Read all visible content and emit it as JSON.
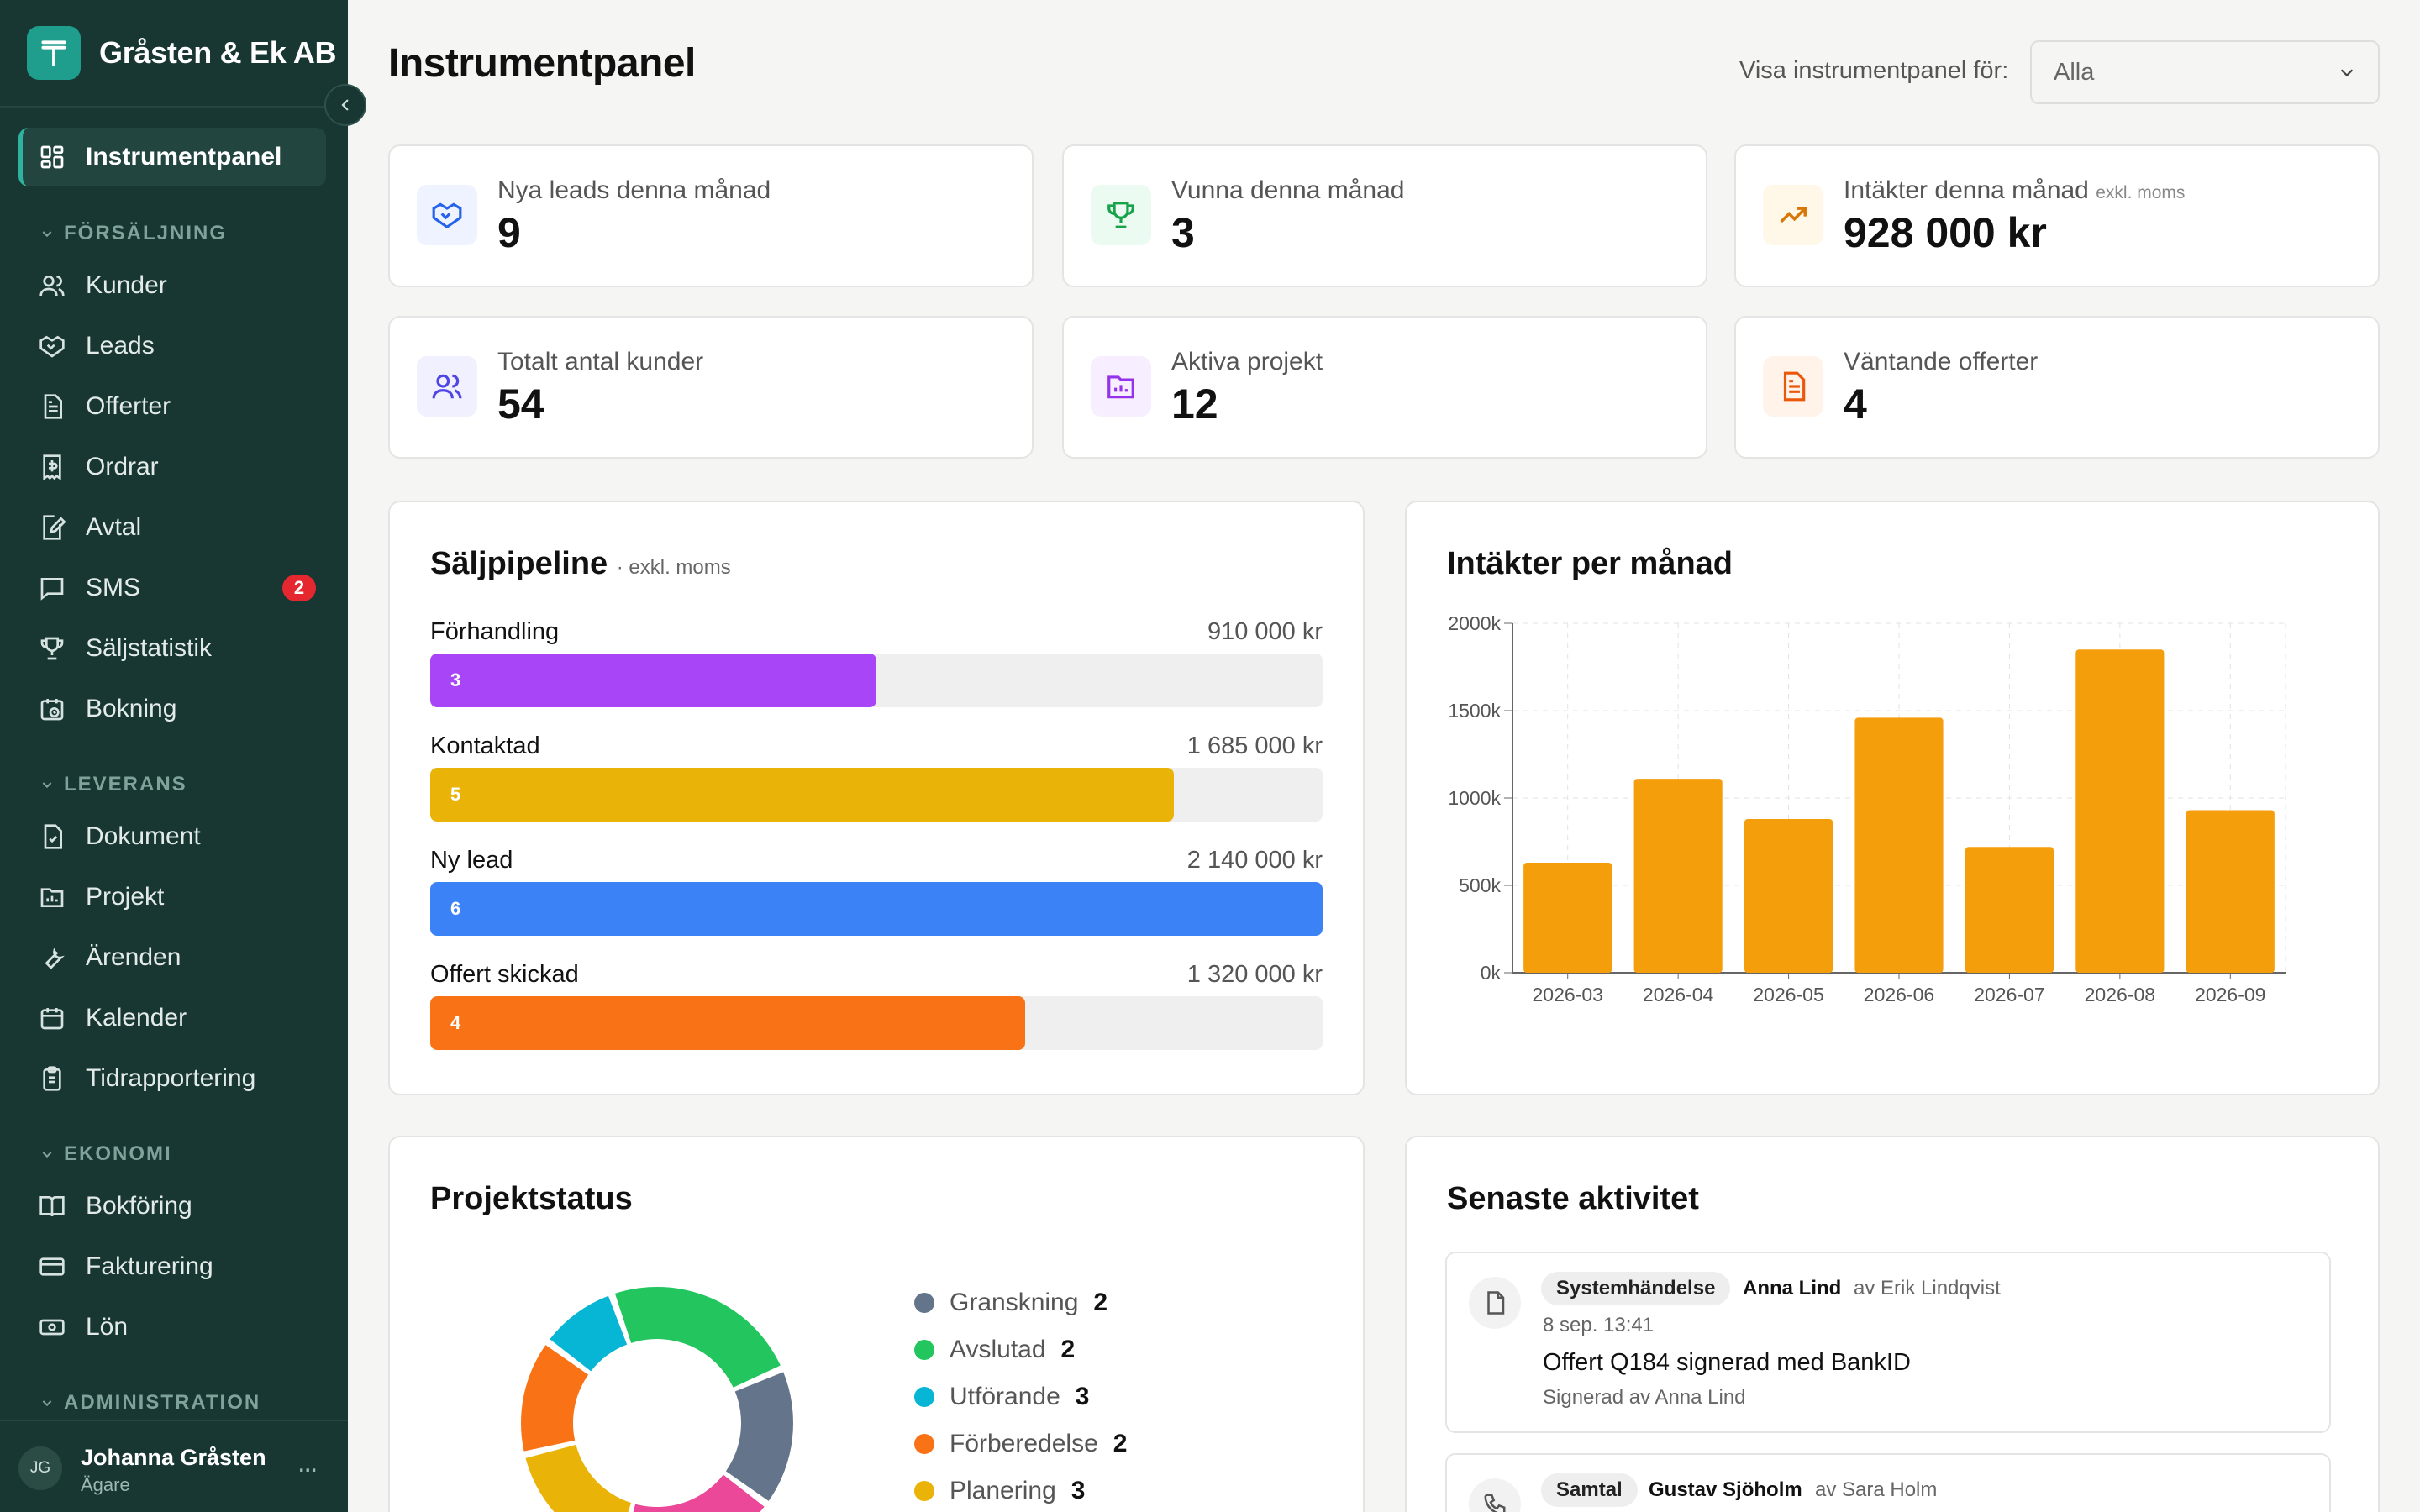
{
  "brand": {
    "name": "Gråsten & Ek AB"
  },
  "nav": {
    "active": "Instrumentpanel",
    "sections": [
      {
        "title": "FÖRSÄLJNING",
        "items": [
          {
            "label": "Kunder",
            "icon": "users-icon"
          },
          {
            "label": "Leads",
            "icon": "handshake-icon"
          },
          {
            "label": "Offerter",
            "icon": "file-text-icon"
          },
          {
            "label": "Ordrar",
            "icon": "receipt-icon"
          },
          {
            "label": "Avtal",
            "icon": "file-signature-icon"
          },
          {
            "label": "SMS",
            "icon": "message-icon",
            "badge": "2"
          },
          {
            "label": "Säljstatistik",
            "icon": "trophy-icon"
          },
          {
            "label": "Bokning",
            "icon": "calendar-clock-icon"
          }
        ]
      },
      {
        "title": "LEVERANS",
        "items": [
          {
            "label": "Dokument",
            "icon": "document-icon"
          },
          {
            "label": "Projekt",
            "icon": "folder-chart-icon"
          },
          {
            "label": "Ärenden",
            "icon": "wrench-icon"
          },
          {
            "label": "Kalender",
            "icon": "calendar-icon"
          },
          {
            "label": "Tidrapportering",
            "icon": "clipboard-icon"
          }
        ]
      },
      {
        "title": "EKONOMI",
        "items": [
          {
            "label": "Bokföring",
            "icon": "book-icon"
          },
          {
            "label": "Fakturering",
            "icon": "credit-card-icon"
          },
          {
            "label": "Lön",
            "icon": "banknote-icon"
          }
        ]
      },
      {
        "title": "ADMINISTRATION",
        "items": []
      }
    ]
  },
  "user": {
    "initials": "JG",
    "name": "Johanna Gråsten",
    "role": "Ägare",
    "more": "..."
  },
  "header": {
    "title": "Instrumentpanel",
    "filter_label": "Visa instrumentpanel för:",
    "filter_value": "Alla"
  },
  "stats": [
    {
      "label": "Nya leads denna månad",
      "value": "9",
      "icon": "handshake-icon",
      "color": "#2563eb"
    },
    {
      "label": "Vunna denna månad",
      "value": "3",
      "icon": "trophy-icon",
      "color": "#16a34a"
    },
    {
      "label": "Intäkter denna månad",
      "note": "exkl. moms",
      "value": "928 000 kr",
      "icon": "trending-up-icon",
      "color": "#d97706"
    },
    {
      "label": "Totalt antal kunder",
      "value": "54",
      "icon": "users-icon",
      "color": "#4f46e5"
    },
    {
      "label": "Aktiva projekt",
      "value": "12",
      "icon": "folder-chart-icon",
      "color": "#9333ea"
    },
    {
      "label": "Väntande offerter",
      "value": "4",
      "icon": "file-text-icon",
      "color": "#ea580c"
    }
  ],
  "pipeline": {
    "title": "Säljpipeline",
    "subtitle": "· exkl. moms",
    "stages": [
      {
        "name": "Förhandling",
        "count": "3",
        "value": "910 000 kr",
        "fraction": 0.5,
        "color": "#a845f7"
      },
      {
        "name": "Kontaktad",
        "count": "5",
        "value": "1 685 000 kr",
        "fraction": 0.833,
        "color": "#eab308"
      },
      {
        "name": "Ny lead",
        "count": "6",
        "value": "2 140 000 kr",
        "fraction": 1.0,
        "color": "#3a82f6"
      },
      {
        "name": "Offert skickad",
        "count": "4",
        "value": "1 320 000 kr",
        "fraction": 0.667,
        "color": "#f97316"
      }
    ]
  },
  "revenue": {
    "title": "Intäkter per månad"
  },
  "chart_data": {
    "type": "bar",
    "categories": [
      "2026-03",
      "2026-04",
      "2026-05",
      "2026-06",
      "2026-07",
      "2026-08",
      "2026-09"
    ],
    "values": [
      630000,
      1110000,
      880000,
      1460000,
      720000,
      1850000,
      930000
    ],
    "ylim": [
      0,
      2000000
    ],
    "yticks": [
      "0k",
      "500k",
      "1000k",
      "1500k",
      "2000k"
    ],
    "grid": true,
    "color": "#f59e0b"
  },
  "project_status": {
    "title": "Projektstatus",
    "items": [
      {
        "label": "Granskning",
        "count": "2",
        "color": "#64748b"
      },
      {
        "label": "Avslutad",
        "count": "2",
        "color": "#22c55e"
      },
      {
        "label": "Utförande",
        "count": "3",
        "color": "#06b6d4"
      },
      {
        "label": "Förberedelse",
        "count": "2",
        "color": "#f97316"
      },
      {
        "label": "Planering",
        "count": "3",
        "color": "#eab308"
      },
      {
        "label": "",
        "count": "",
        "color": "#ec4899"
      }
    ]
  },
  "activity": {
    "title": "Senaste aktivitet",
    "items": [
      {
        "type": "Systemhändelse",
        "person": "Anna Lind",
        "by": "av Erik Lindqvist",
        "time": "8 sep. 13:41",
        "title": "Offert Q184 signerad med BankID",
        "sub": "Signerad av Anna Lind",
        "icon": "file-icon"
      },
      {
        "type": "Samtal",
        "person": "Gustav Sjöholm",
        "by": "av Sara Holm",
        "icon": "phone-icon"
      }
    ]
  }
}
